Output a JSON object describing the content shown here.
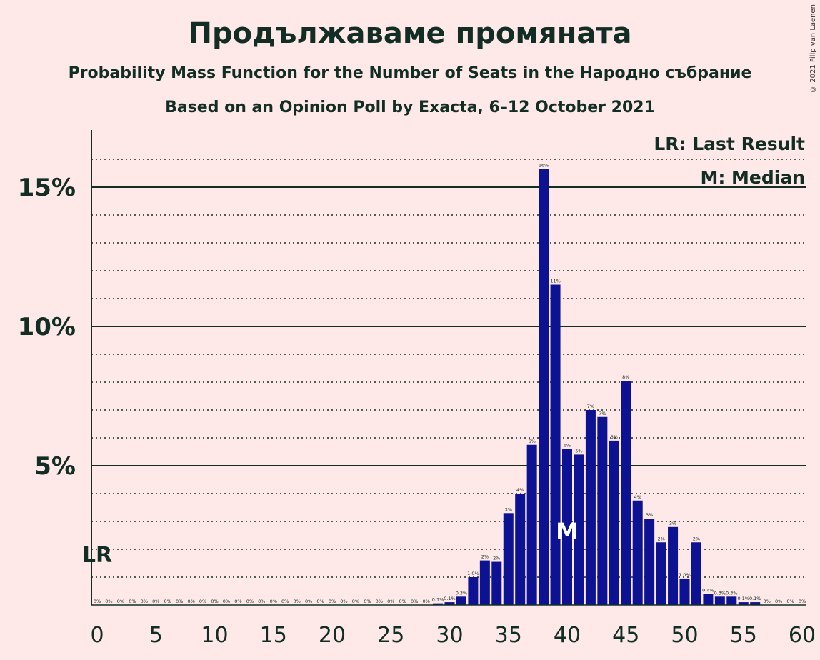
{
  "title": "Продължаваме промяната",
  "subtitle": "Probability Mass Function for the Number of Seats in the Народно събрание",
  "subtitle2": "Based on an Opinion Poll by Exacta, 6–12 October 2021",
  "copyright": "© 2021 Filip van Laenen",
  "colors": {
    "bar": "#0C1291",
    "background": "#FFE8E8",
    "text": "#122E24"
  },
  "chart_data": {
    "type": "bar",
    "title": "Продължаваме промяната",
    "xlim": [
      0,
      60
    ],
    "ylim": [
      0,
      17
    ],
    "x_ticks": [
      0,
      5,
      10,
      15,
      20,
      25,
      30,
      35,
      40,
      45,
      50,
      55,
      60
    ],
    "y_ticks": [
      {
        "value": 5,
        "label": "5%"
      },
      {
        "value": 10,
        "label": "10%"
      },
      {
        "value": 15,
        "label": "15%"
      }
    ],
    "legend": [
      "LR: Last Result",
      "M: Median"
    ],
    "legend_position": "top-right",
    "last_result": {
      "x": 0,
      "label": "LR"
    },
    "median": {
      "x": 40,
      "label": "M"
    },
    "seats": [
      0,
      1,
      2,
      3,
      4,
      5,
      6,
      7,
      8,
      9,
      10,
      11,
      12,
      13,
      14,
      15,
      16,
      17,
      18,
      19,
      20,
      21,
      22,
      23,
      24,
      25,
      26,
      27,
      28,
      29,
      30,
      31,
      32,
      33,
      34,
      35,
      36,
      37,
      38,
      39,
      40,
      41,
      42,
      43,
      44,
      45,
      46,
      47,
      48,
      49,
      50,
      51,
      52,
      53,
      54,
      55,
      56,
      57,
      58,
      59,
      60
    ],
    "values": [
      0,
      0,
      0,
      0,
      0,
      0,
      0,
      0,
      0,
      0,
      0,
      0,
      0,
      0,
      0,
      0,
      0,
      0,
      0,
      0,
      0,
      0,
      0,
      0,
      0,
      0,
      0,
      0,
      0,
      0.06,
      0.1,
      0.3,
      1.0,
      1.6,
      1.55,
      3.3,
      4.0,
      5.75,
      15.65,
      11.5,
      5.6,
      5.4,
      7.0,
      6.75,
      5.9,
      8.05,
      3.75,
      3.1,
      2.25,
      2.8,
      0.95,
      2.25,
      0.4,
      0.3,
      0.3,
      0.1,
      0.1,
      0,
      0,
      0,
      0
    ],
    "labels": [
      "0%",
      "0%",
      "0%",
      "0%",
      "0%",
      "0%",
      "0%",
      "0%",
      "0%",
      "0%",
      "0%",
      "0%",
      "0%",
      "0%",
      "0%",
      "0%",
      "0%",
      "0%",
      "0%",
      "0%",
      "0%",
      "0%",
      "0%",
      "0%",
      "0%",
      "0%",
      "0%",
      "0%",
      "0%",
      "0.1%",
      "0.1%",
      "0.3%",
      "1.0%",
      "2%",
      "2%",
      "3%",
      "4%",
      "6%",
      "16%",
      "11%",
      "6%",
      "5%",
      "7%",
      "7%",
      "6%",
      "8%",
      "4%",
      "3%",
      "2%",
      "3%",
      "1.0%",
      "2%",
      "0.4%",
      "0.3%",
      "0.3%",
      "0.1%",
      "0.1%",
      "0%",
      "0%",
      "0%",
      "0%"
    ]
  }
}
